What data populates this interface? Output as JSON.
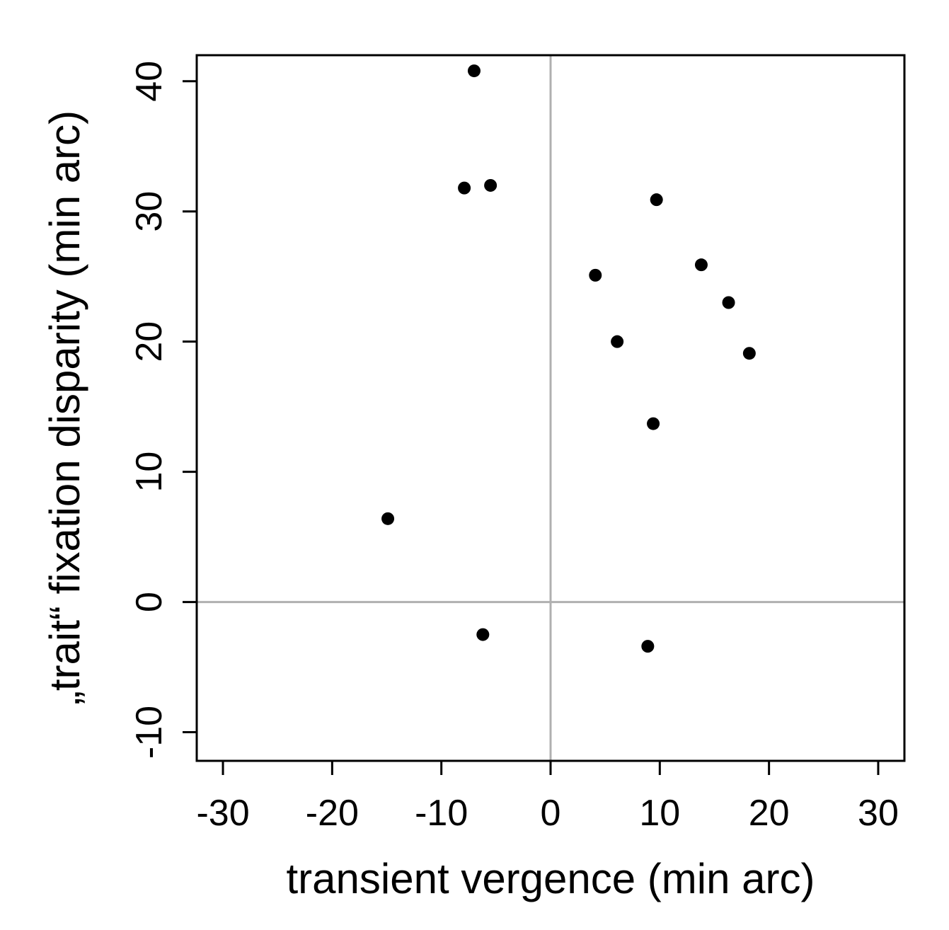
{
  "chart_data": {
    "type": "scatter",
    "xlabel": "transient vergence (min arc)",
    "ylabel": "„trait“ fixation disparity (min arc)",
    "x": [
      -7.0,
      -7.9,
      -5.5,
      9.7,
      4.1,
      13.8,
      16.3,
      6.1,
      18.2,
      9.4,
      -14.9,
      -6.2,
      8.9
    ],
    "series": [
      {
        "color": "#000000",
        "values": [
          40.8,
          31.8,
          32.0,
          30.9,
          25.1,
          25.9,
          23.0,
          20.0,
          19.1,
          13.7,
          6.4,
          -2.5,
          -3.4
        ]
      }
    ],
    "xlim": [
      -32.4,
      32.4
    ],
    "ylim": [
      -12.2,
      42.0
    ],
    "xticks": [
      -30,
      -20,
      -10,
      0,
      10,
      20,
      30
    ],
    "yticks": [
      -10,
      0,
      10,
      20,
      30,
      40
    ],
    "reference_lines": {
      "x": 0,
      "y": 0,
      "color": "#b0b0b0"
    }
  }
}
